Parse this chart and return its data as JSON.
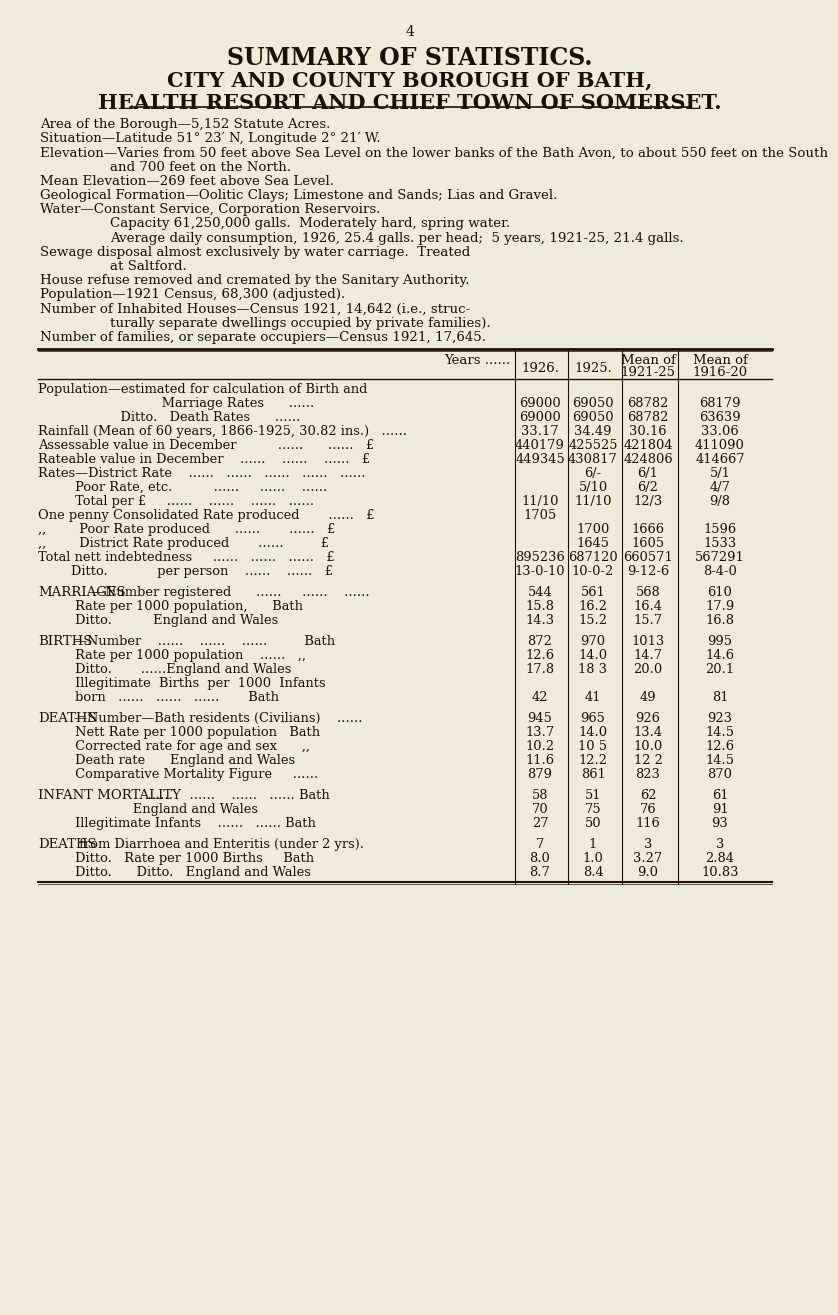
{
  "bg_color": "#f0ead8",
  "text_color": "#1a1008",
  "page_number": "4",
  "title1": "SUMMARY OF STATISTICS.",
  "title2": "CITY AND COUNTY BOROUGH OF BATH,",
  "title3": "HEALTH RESORT AND CHIEF TOWN OF SOMERSET.",
  "preamble_lines": [
    {
      "text": "Area of the Borough—5,152 Statute Acres.",
      "indent": 30
    },
    {
      "text": "Situation—Latitude 51° 23′ N, Longitude 2° 21′ W.",
      "indent": 30
    },
    {
      "text": "Elevation—Varies from 50 feet above Sea Level on the lower banks of the Bath Avon, to about 550 feet on the South",
      "indent": 30
    },
    {
      "text": "and 700 feet on the North.",
      "indent": 100
    },
    {
      "text": "Mean Elevation—269 feet above Sea Level.",
      "indent": 30
    },
    {
      "text": "Geological Formation—Oolitic Clays; Limestone and Sands; Lias and Gravel.",
      "indent": 30
    },
    {
      "text": "Water—Constant Service, Corporation Reservoirs.",
      "indent": 30
    },
    {
      "text": "Capacity 61,250,000 galls.  Moderately hard, spring water.",
      "indent": 100
    },
    {
      "text": "Average daily consumption, 1926, 25.4 galls. per head;  5 years, 1921-25, 21.4 galls.",
      "indent": 100
    },
    {
      "text": "Sewage disposal almost exclusively by water carriage.  Treated",
      "indent": 30
    },
    {
      "text": "at Saltford.",
      "indent": 100
    },
    {
      "text": "House refuse removed and cremated by the Sanitary Authority.",
      "indent": 30
    },
    {
      "text": "Population—1921 Census, 68,300 (adjusted).",
      "indent": 30
    },
    {
      "text": "Number of Inhabited Houses—Census 1921, 14,642 (i.e., struc-",
      "indent": 30
    },
    {
      "text": "turally separate dwellings occupied by private families).",
      "indent": 100
    },
    {
      "text": "Number of families, or separate occupiers—Census 1921, 17,645.",
      "indent": 30
    }
  ],
  "table_rows": [
    {
      "label": "Population—estimated for calculation of Birth and",
      "label2": "                              Marriage Rates      ......",
      "vals": [
        "69000",
        "69050",
        "68782",
        "68179"
      ],
      "style": "normal2"
    },
    {
      "label": "                    Ditto.   Death Rates      ......",
      "vals": [
        "69000",
        "69050",
        "68782",
        "63639"
      ],
      "style": "normal"
    },
    {
      "label": "Rainfall (Mean of 60 years, 1866-1925, 30.82 ins.)   ......",
      "vals": [
        "33.17",
        "34.49",
        "30.16",
        "33.06"
      ],
      "style": "normal"
    },
    {
      "label": "Assessable value in December          ......      ......   £",
      "vals": [
        "440179",
        "425525",
        "421804",
        "411090"
      ],
      "style": "normal"
    },
    {
      "label": "Rateable value in December    ......    ......    ......   £",
      "vals": [
        "449345",
        "430817",
        "424806",
        "414667"
      ],
      "style": "normal"
    },
    {
      "label": "Rates—District Rate    ......   ......   ......   ......   ......",
      "vals": [
        "",
        "6/-",
        "6/1",
        "5/1"
      ],
      "style": "normal"
    },
    {
      "label": "         Poor Rate, etc.          ......     ......    ......",
      "vals": [
        "",
        "5/10",
        "6/2",
        "4/7"
      ],
      "style": "normal"
    },
    {
      "label": "         Total per £     ......    ......    ......   ......",
      "vals": [
        "11/10",
        "11/10",
        "12/3",
        "9/8"
      ],
      "style": "normal"
    },
    {
      "label": "One penny Consolidated Rate produced       ......   £",
      "vals": [
        "1705",
        "",
        "",
        ""
      ],
      "style": "normal"
    },
    {
      "label": ",,        Poor Rate produced      ......       ......   £",
      "vals": [
        "",
        "1700",
        "1666",
        "1596"
      ],
      "style": "normal"
    },
    {
      "label": ",,        District Rate produced       ......         £",
      "vals": [
        "",
        "1645",
        "1605",
        "1533"
      ],
      "style": "normal"
    },
    {
      "label": "Total nett indebtedness     ......   ......   ......   £",
      "vals": [
        "895236",
        "687120",
        "660571",
        "567291"
      ],
      "style": "normal"
    },
    {
      "label": "        Ditto.            per person    ......    ......   £",
      "vals": [
        "13-0-10",
        "10-0-2",
        "9-12-6",
        "8-4-0"
      ],
      "style": "normal"
    },
    {
      "label": "",
      "vals": [
        "",
        "",
        "",
        ""
      ],
      "style": "spacer"
    },
    {
      "label": "Marriages—Number registered      ......     ......    ......",
      "vals": [
        "544",
        "561",
        "568",
        "610"
      ],
      "style": "section"
    },
    {
      "label": "         Rate per 1000 population,      Bath",
      "vals": [
        "15.8",
        "16.2",
        "16.4",
        "17.9"
      ],
      "style": "normal"
    },
    {
      "label": "         Ditto.          England and Wales",
      "vals": [
        "14.3",
        "15.2",
        "15.7",
        "16.8"
      ],
      "style": "normal"
    },
    {
      "label": "",
      "vals": [
        "",
        "",
        "",
        ""
      ],
      "style": "spacer"
    },
    {
      "label": "Births—Number    ......    ......    ......         Bath",
      "vals": [
        "872",
        "970",
        "1013",
        "995"
      ],
      "style": "section"
    },
    {
      "label": "         Rate per 1000 population    ......   ,,",
      "vals": [
        "12.6",
        "14.0",
        "14.7",
        "14.6"
      ],
      "style": "normal"
    },
    {
      "label": "         Ditto.       ......England and Wales",
      "vals": [
        "17.8",
        "18 3",
        "20.0",
        "20.1"
      ],
      "style": "normal"
    },
    {
      "label": "         Illegitimate  Births  per  1000  Infants",
      "label2": "         born   ......   ......   ......       Bath",
      "vals": [
        "42",
        "41",
        "49",
        "81"
      ],
      "style": "normal2"
    },
    {
      "label": "",
      "vals": [
        "",
        "",
        "",
        ""
      ],
      "style": "spacer"
    },
    {
      "label": "Deaths—Number—Bath residents (Civilians)    ......",
      "vals": [
        "945",
        "965",
        "926",
        "923"
      ],
      "style": "section"
    },
    {
      "label": "         Nett Rate per 1000 population   Bath",
      "vals": [
        "13.7",
        "14.0",
        "13.4",
        "14.5"
      ],
      "style": "normal"
    },
    {
      "label": "         Corrected rate for age and sex      ,,",
      "vals": [
        "10.2",
        "10 5",
        "10.0",
        "12.6"
      ],
      "style": "normal"
    },
    {
      "label": "         Death rate      England and Wales",
      "vals": [
        "11.6",
        "12.2",
        "12 2",
        "14.5"
      ],
      "style": "normal"
    },
    {
      "label": "         Comparative Mortality Figure     ......",
      "vals": [
        "879",
        "861",
        "823",
        "870"
      ],
      "style": "normal"
    },
    {
      "label": "",
      "vals": [
        "",
        "",
        "",
        ""
      ],
      "style": "spacer"
    },
    {
      "label": "Infant Mortality    ......    ......    ......   ...... Bath",
      "vals": [
        "58",
        "51",
        "62",
        "61"
      ],
      "style": "section"
    },
    {
      "label": "                       England and Wales",
      "vals": [
        "70",
        "75",
        "76",
        "91"
      ],
      "style": "normal"
    },
    {
      "label": "         Illegitimate Infants    ......   ...... Bath",
      "vals": [
        "27",
        "50",
        "116",
        "93"
      ],
      "style": "normal"
    },
    {
      "label": "",
      "vals": [
        "",
        "",
        "",
        ""
      ],
      "style": "spacer"
    },
    {
      "label": "Deaths from Diarrhoea and Enteritis (under 2 yrs).",
      "vals": [
        "7",
        "1",
        "3",
        "3"
      ],
      "style": "section"
    },
    {
      "label": "         Ditto.   Rate per 1000 Births     Bath",
      "vals": [
        "8.0",
        "1.0",
        "3.27",
        "2.84"
      ],
      "style": "normal"
    },
    {
      "label": "         Ditto.      Ditto.   England and Wales",
      "vals": [
        "8.7",
        "8.4",
        "9.0",
        "10.83"
      ],
      "style": "normal"
    }
  ]
}
